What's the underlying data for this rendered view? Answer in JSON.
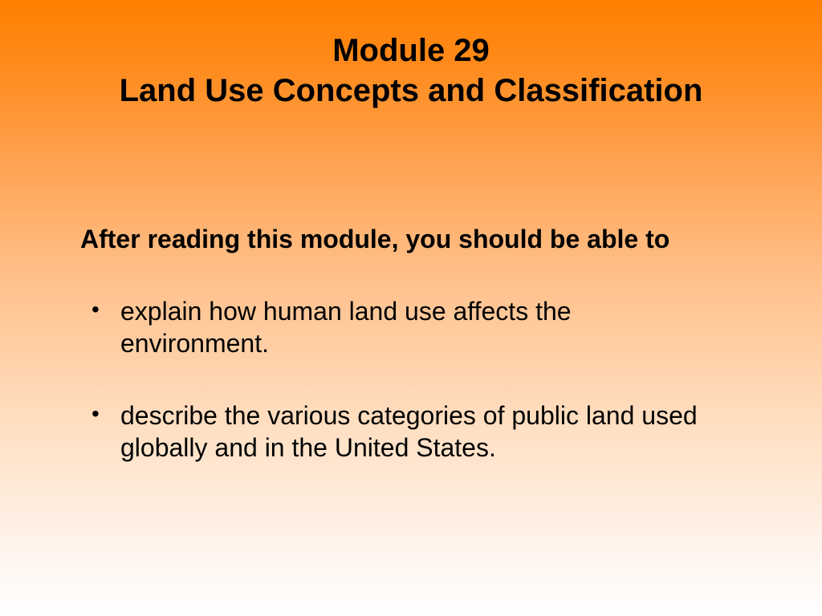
{
  "slide": {
    "title_line1": "Module 29",
    "title_line2": "Land Use Concepts and Classification",
    "intro": "After reading this module, you should be able to",
    "bullets": [
      "explain how human land use affects the environment.",
      "describe the various categories of public land used globally and in the United States."
    ],
    "styling": {
      "background_gradient_top": "#ff7f00",
      "background_gradient_bottom": "#ffffff",
      "text_color": "#000000",
      "title_fontsize": 40,
      "body_fontsize": 32,
      "font_family": "Arial"
    }
  }
}
